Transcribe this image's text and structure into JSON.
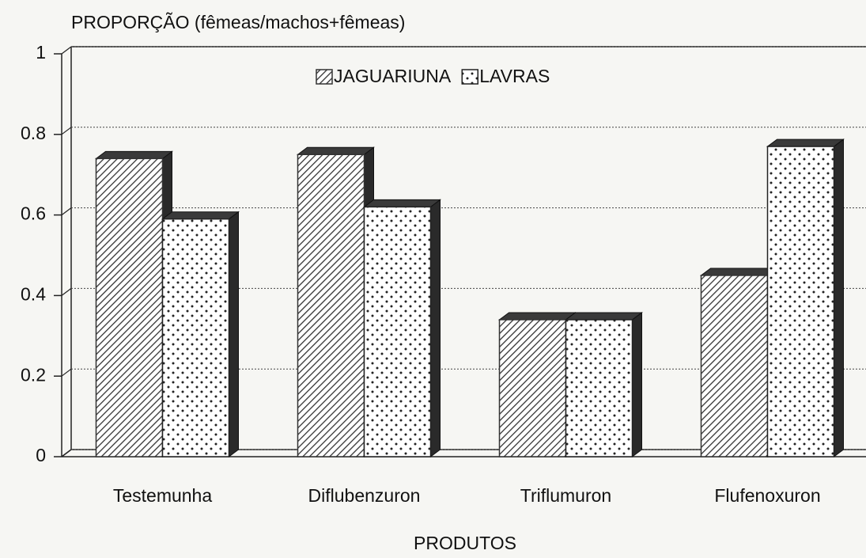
{
  "chart_data": {
    "type": "bar",
    "title": "PROPORÇÃO (fêmeas/machos+fêmeas)",
    "x_label": "PRODUTOS",
    "categories": [
      "Testemunha",
      "Diflubenzuron",
      "Triflumuron",
      "Flufenoxuron"
    ],
    "series": [
      {
        "name": "JAGUARIUNA",
        "color": "#333333",
        "pattern": "hatch",
        "values": [
          0.74,
          0.75,
          0.34,
          0.45
        ]
      },
      {
        "name": "LAVRAS",
        "color": "#222222",
        "pattern": "dots",
        "values": [
          0.59,
          0.62,
          0.34,
          0.77
        ]
      }
    ],
    "ylim": [
      0,
      1
    ],
    "yticks": [
      0,
      0.2,
      0.4,
      0.6,
      0.8,
      1
    ],
    "grid": true,
    "legend": "top"
  }
}
